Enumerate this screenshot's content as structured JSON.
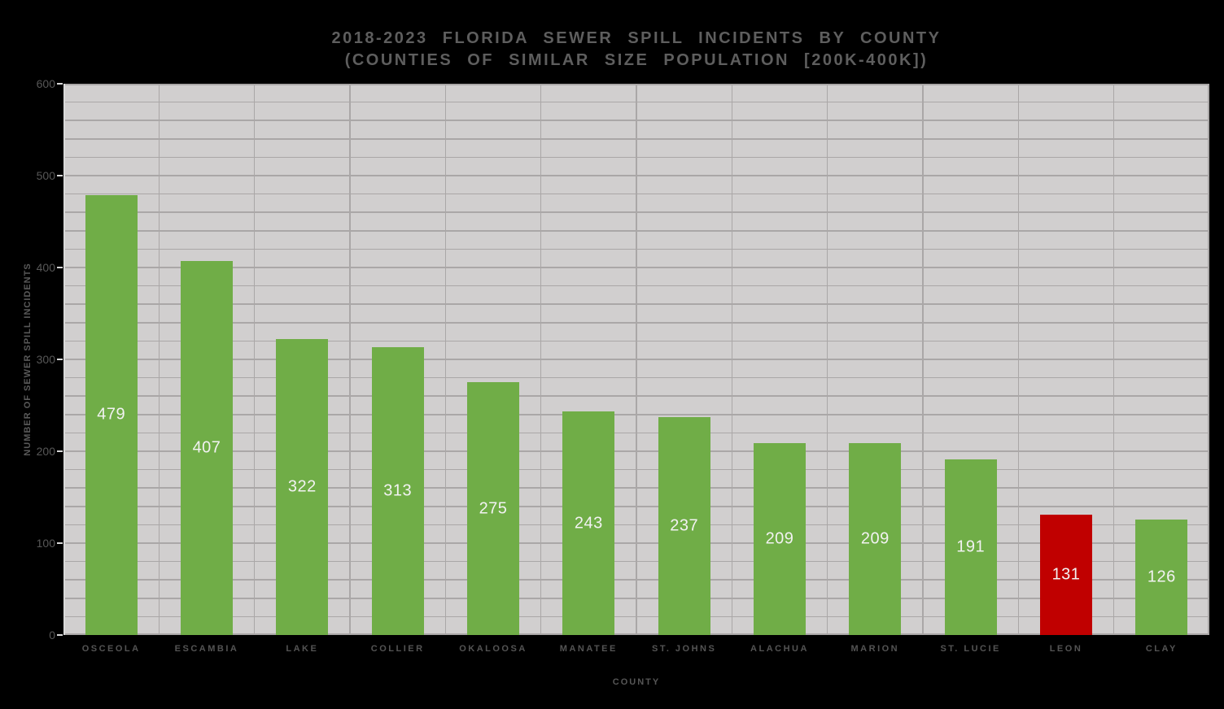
{
  "chart_data": {
    "type": "bar",
    "title_line1": "2018-2023 FLORIDA SEWER SPILL INCIDENTS BY COUNTY",
    "title_line2": "(COUNTIES OF SIMILAR SIZE POPULATION [200K-400K])",
    "xlabel": "COUNTY",
    "ylabel": "NUMBER OF SEWER SPILL INCIDENTS",
    "categories": [
      "OSCEOLA",
      "ESCAMBIA",
      "LAKE",
      "COLLIER",
      "OKALOOSA",
      "MANATEE",
      "ST. JOHNS",
      "ALACHUA",
      "MARION",
      "ST. LUCIE",
      "LEON",
      "CLAY"
    ],
    "values": [
      479,
      407,
      322,
      313,
      275,
      243,
      237,
      209,
      209,
      191,
      131,
      126
    ],
    "bar_colors": [
      "#70AD47",
      "#70AD47",
      "#70AD47",
      "#70AD47",
      "#70AD47",
      "#70AD47",
      "#70AD47",
      "#70AD47",
      "#70AD47",
      "#70AD47",
      "#C00000",
      "#70AD47"
    ],
    "highlighted_category": "LEON",
    "ylim": [
      0,
      600
    ],
    "y_major_step": 100,
    "y_minor_step": 20,
    "y_tick_labels": [
      "0",
      "100",
      "200",
      "300",
      "400",
      "500",
      "600"
    ],
    "grid": "on",
    "legend": "none",
    "colors": {
      "page_background": "#000000",
      "plot_background": "#d1cfcf",
      "gridline": "#aaa7a7",
      "axis_line": "#d9d9d9",
      "bar_default": "#70AD47",
      "bar_highlight": "#C00000",
      "value_label": "#f2f2f2",
      "axis_text": "#595959"
    }
  }
}
